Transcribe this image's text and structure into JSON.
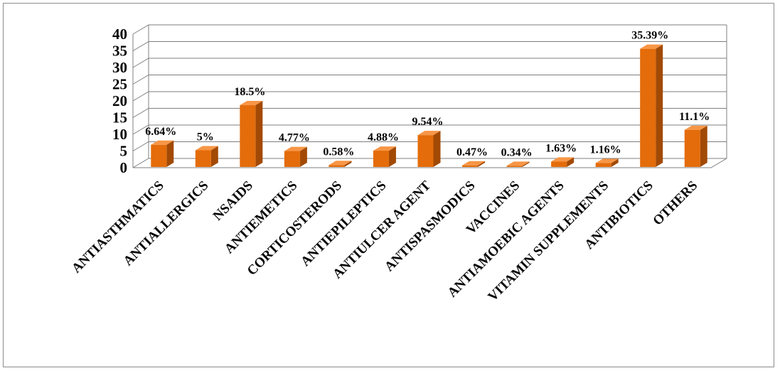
{
  "chart_data": {
    "type": "bar",
    "categories": [
      "ANTIASTHMATICS",
      "ANTIALLERGICS",
      "NSAIDS",
      "ANTIEMETICS",
      "CORTICOSTERODS",
      "ANTIEPILEPTICS",
      "ANTIULCER AGENT",
      "ANTISPASMODICS",
      "VACCINES",
      "ANTIAMOEBIC AGENTS",
      "VITAMIN SUPPLEMENTS",
      "ANTIBIOTICS",
      "OTHERS"
    ],
    "values": [
      6.64,
      5,
      18.5,
      4.77,
      0.58,
      4.88,
      9.54,
      0.47,
      0.34,
      1.63,
      1.16,
      35.39,
      11.1
    ],
    "data_labels": [
      "6.64%",
      "5%",
      "18.5%",
      "4.77%",
      "0.58%",
      "4.88%",
      "9.54%",
      "0.47%",
      "0.34%",
      "1.63%",
      "1.16%",
      "35.39%",
      "11.1%"
    ],
    "yticks": [
      "0",
      "5",
      "10",
      "15",
      "20",
      "25",
      "30",
      "35",
      "40"
    ],
    "ylim": [
      0,
      40
    ],
    "title": "",
    "xlabel": "",
    "ylabel": "",
    "grid": true,
    "bar_color": "#E46C0A",
    "bar_side_color": "#A24A05",
    "bar_top_color": "#F79646"
  }
}
